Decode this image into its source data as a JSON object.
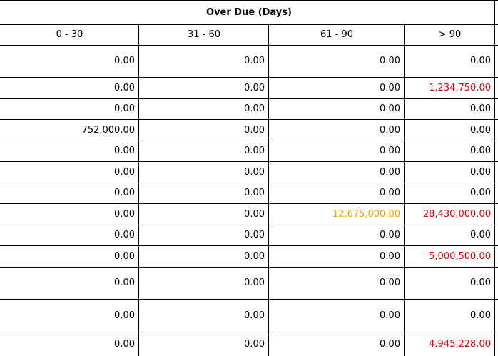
{
  "table": {
    "title": "Over Due (Days)",
    "columns": [
      "0 - 30",
      "31 - 60",
      "61 - 90",
      "> 90"
    ],
    "colors": {
      "normal": "#000000",
      "warning": "#f0a000",
      "danger": "#e00000"
    },
    "rows": [
      {
        "values": [
          "0.00",
          "0.00",
          "0.00",
          "0.00"
        ],
        "status": [
          "normal",
          "normal",
          "normal",
          "normal"
        ]
      },
      {
        "values": [
          "0.00",
          "0.00",
          "0.00",
          "1,234,750.00"
        ],
        "status": [
          "normal",
          "normal",
          "normal",
          "danger"
        ]
      },
      {
        "values": [
          "0.00",
          "0.00",
          "0.00",
          "0.00"
        ],
        "status": [
          "normal",
          "normal",
          "normal",
          "normal"
        ]
      },
      {
        "values": [
          "752,000.00",
          "0.00",
          "0.00",
          "0.00"
        ],
        "status": [
          "normal",
          "normal",
          "normal",
          "normal"
        ]
      },
      {
        "values": [
          "0.00",
          "0.00",
          "0.00",
          "0.00"
        ],
        "status": [
          "normal",
          "normal",
          "normal",
          "normal"
        ]
      },
      {
        "values": [
          "0.00",
          "0.00",
          "0.00",
          "0.00"
        ],
        "status": [
          "normal",
          "normal",
          "normal",
          "normal"
        ]
      },
      {
        "values": [
          "0.00",
          "0.00",
          "0.00",
          "0.00"
        ],
        "status": [
          "normal",
          "normal",
          "normal",
          "normal"
        ]
      },
      {
        "values": [
          "0.00",
          "0.00",
          "12,675,000.00",
          "28,430,000.00"
        ],
        "status": [
          "normal",
          "normal",
          "warning",
          "danger"
        ]
      },
      {
        "values": [
          "0.00",
          "0.00",
          "0.00",
          "0.00"
        ],
        "status": [
          "normal",
          "normal",
          "normal",
          "normal"
        ]
      },
      {
        "values": [
          "0.00",
          "0.00",
          "0.00",
          "5,000,500.00"
        ],
        "status": [
          "normal",
          "normal",
          "normal",
          "danger"
        ]
      },
      {
        "values": [
          "0.00",
          "0.00",
          "0.00",
          "0.00"
        ],
        "status": [
          "normal",
          "normal",
          "normal",
          "normal"
        ]
      },
      {
        "values": [
          "0.00",
          "0.00",
          "0.00",
          "0.00"
        ],
        "status": [
          "normal",
          "normal",
          "normal",
          "normal"
        ]
      },
      {
        "values": [
          "0.00",
          "0.00",
          "0.00",
          "4,945,228.00"
        ],
        "status": [
          "normal",
          "normal",
          "normal",
          "danger"
        ]
      }
    ]
  }
}
